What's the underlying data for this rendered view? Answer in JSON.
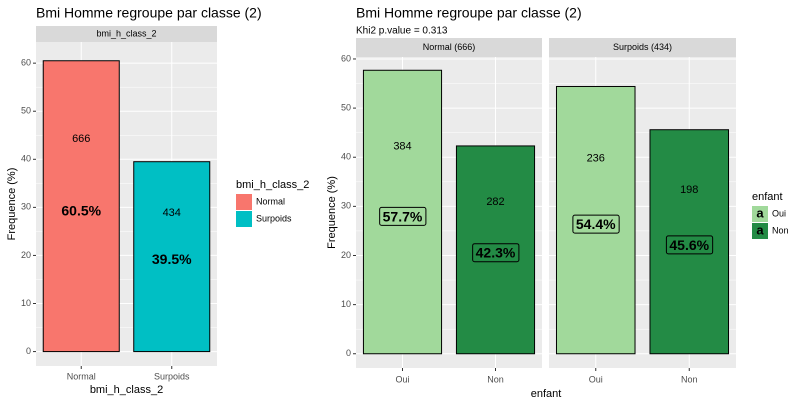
{
  "chart_data": [
    {
      "type": "bar",
      "title": "Bmi Homme regroupe par classe (2)",
      "y_label": "Frequence (%)",
      "x_label": "bmi_h_class_2",
      "legend_title": "bmi_h_class_2",
      "categories": [
        "Normal",
        "Surpoids"
      ],
      "colors": [
        "#F8766D",
        "#00BFC4"
      ],
      "facets": [
        {
          "label": "bmi_h_class_2",
          "values": [
            60.5,
            39.5
          ],
          "value_labels": [
            "60.5%",
            "39.5%"
          ],
          "counts": [
            666,
            434
          ]
        }
      ],
      "ylim": [
        -3.0,
        64.4
      ],
      "yticks": [
        0,
        10,
        20,
        30,
        40,
        50,
        60
      ],
      "grid": true,
      "label_box": false
    },
    {
      "type": "bar",
      "title": "Bmi Homme regroupe par classe (2)",
      "subtitle": "Khi2 p.value = 0.313",
      "y_label": "Frequence (%)",
      "x_label": "enfant",
      "legend_title": "enfant",
      "legend_key_glyph": "a",
      "categories": [
        "Oui",
        "Non"
      ],
      "colors": [
        "#A1D99B",
        "#238B45"
      ],
      "facets": [
        {
          "label": "Normal (666)",
          "values": [
            57.7,
            42.3
          ],
          "value_labels": [
            "57.7%",
            "42.3%"
          ],
          "counts": [
            384,
            282
          ]
        },
        {
          "label": "Surpoids (434)",
          "values": [
            54.4,
            45.6
          ],
          "value_labels": [
            "54.4%",
            "45.6%"
          ],
          "counts": [
            236,
            198
          ]
        }
      ],
      "ylim": [
        -2.9,
        60.4
      ],
      "yticks": [
        0,
        10,
        20,
        30,
        40,
        50,
        60
      ],
      "grid": true,
      "label_box": true
    }
  ]
}
